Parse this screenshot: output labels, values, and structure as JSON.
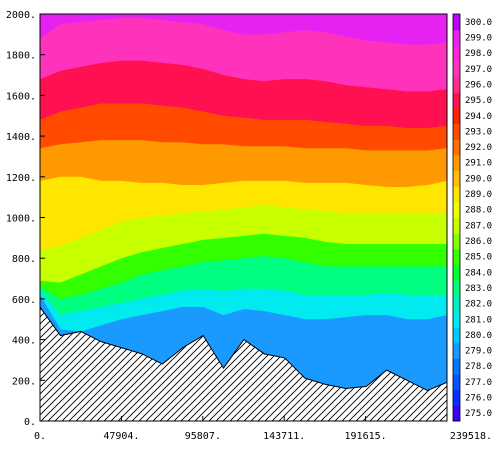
{
  "chart_data": {
    "type": "filled-contour",
    "title": "",
    "xlabel": "",
    "ylabel": "",
    "xlim": [
      0,
      239518
    ],
    "ylim": [
      0,
      2000
    ],
    "x_tick_values": [
      0,
      47904,
      95807,
      143711,
      191615,
      239518
    ],
    "x_tick_labels": [
      "0.",
      "47904.",
      "95807.",
      "143711.",
      "191615.",
      "239518."
    ],
    "y_tick_values": [
      0,
      200,
      400,
      600,
      800,
      1000,
      1200,
      1400,
      1600,
      1800,
      2000
    ],
    "y_tick_labels": [
      "0.",
      "200.",
      "400.",
      "600.",
      "800.",
      "1000.",
      "1200.",
      "1400.",
      "1600.",
      "1800.",
      "2000."
    ],
    "colorbar": {
      "levels": [
        275.0,
        276.0,
        277.0,
        278.0,
        279.0,
        280.0,
        281.0,
        282.0,
        283.0,
        284.0,
        285.0,
        286.0,
        287.0,
        288.0,
        289.0,
        290.0,
        291.0,
        292.0,
        293.0,
        294.0,
        295.0,
        296.0,
        297.0,
        298.0,
        299.0,
        300.0
      ],
      "labels": [
        "275.0",
        "276.0",
        "277.0",
        "278.0",
        "279.0",
        "280.0",
        "281.0",
        "282.0",
        "283.0",
        "284.0",
        "285.0",
        "286.0",
        "287.0",
        "288.0",
        "289.0",
        "290.0",
        "291.0",
        "292.0",
        "293.0",
        "294.0",
        "295.0",
        "296.0",
        "297.0",
        "298.0",
        "299.0",
        "300.0"
      ],
      "colors": [
        "#3a00ff",
        "#0033ff",
        "#0055ff",
        "#0077ff",
        "#1a99ff",
        "#00c8ff",
        "#00eaf0",
        "#00f0c0",
        "#00ff80",
        "#00ff30",
        "#33ff00",
        "#88ff00",
        "#c8ff00",
        "#f0ff00",
        "#ffe600",
        "#ffbf00",
        "#ff9900",
        "#ff7000",
        "#ff4a00",
        "#ff2200",
        "#ff1050",
        "#ff2a8a",
        "#ff33bb",
        "#ff22dd",
        "#e622f2",
        "#bb00ff"
      ]
    },
    "x_samples": [
      0,
      12000,
      24000,
      36000,
      48000,
      60000,
      72000,
      84000,
      96000,
      108000,
      120000,
      132000,
      144000,
      156000,
      168000,
      180000,
      192000,
      204000,
      216000,
      228000,
      239518
    ],
    "terrain_height": [
      560,
      420,
      440,
      390,
      360,
      330,
      280,
      360,
      420,
      260,
      400,
      330,
      310,
      210,
      180,
      160,
      170,
      250,
      200,
      150,
      190
    ],
    "isotherm_heights": {
      "level_labels": [
        "281.0",
        "283.0",
        "285.0",
        "287.0",
        "289.0",
        "291.0",
        "293.0",
        "295.0",
        "297.0",
        "299.0"
      ],
      "heights": [
        [
          620,
          450,
          440,
          470,
          500,
          520,
          540,
          560,
          560,
          520,
          550,
          540,
          520,
          500,
          500,
          510,
          520,
          520,
          500,
          500,
          520
        ],
        [
          640,
          520,
          540,
          560,
          580,
          600,
          620,
          640,
          650,
          640,
          650,
          650,
          640,
          620,
          620,
          620,
          620,
          630,
          620,
          620,
          620
        ],
        [
          660,
          600,
          620,
          650,
          680,
          720,
          740,
          760,
          780,
          790,
          800,
          810,
          800,
          780,
          760,
          760,
          760,
          760,
          760,
          760,
          760
        ],
        [
          690,
          680,
          720,
          760,
          800,
          830,
          850,
          870,
          890,
          900,
          910,
          920,
          910,
          900,
          880,
          870,
          870,
          870,
          870,
          870,
          870
        ],
        [
          840,
          860,
          900,
          940,
          980,
          1000,
          1010,
          1020,
          1030,
          1040,
          1050,
          1060,
          1050,
          1040,
          1030,
          1020,
          1020,
          1020,
          1020,
          1020,
          1020
        ],
        [
          1180,
          1200,
          1200,
          1180,
          1180,
          1170,
          1170,
          1160,
          1160,
          1170,
          1180,
          1180,
          1180,
          1170,
          1170,
          1170,
          1160,
          1150,
          1150,
          1160,
          1180
        ],
        [
          1340,
          1360,
          1370,
          1380,
          1380,
          1380,
          1370,
          1370,
          1360,
          1360,
          1350,
          1350,
          1350,
          1340,
          1340,
          1340,
          1330,
          1330,
          1330,
          1330,
          1340
        ],
        [
          1480,
          1520,
          1540,
          1560,
          1560,
          1560,
          1550,
          1540,
          1520,
          1500,
          1490,
          1480,
          1480,
          1480,
          1470,
          1460,
          1450,
          1450,
          1440,
          1440,
          1450
        ],
        [
          1680,
          1720,
          1740,
          1760,
          1770,
          1770,
          1760,
          1750,
          1730,
          1700,
          1680,
          1670,
          1680,
          1680,
          1670,
          1650,
          1640,
          1630,
          1620,
          1620,
          1630
        ],
        [
          1880,
          1950,
          1960,
          1970,
          1980,
          1980,
          1970,
          1960,
          1950,
          1920,
          1900,
          1900,
          1910,
          1920,
          1910,
          1890,
          1870,
          1860,
          1850,
          1850,
          1860
        ]
      ]
    }
  }
}
